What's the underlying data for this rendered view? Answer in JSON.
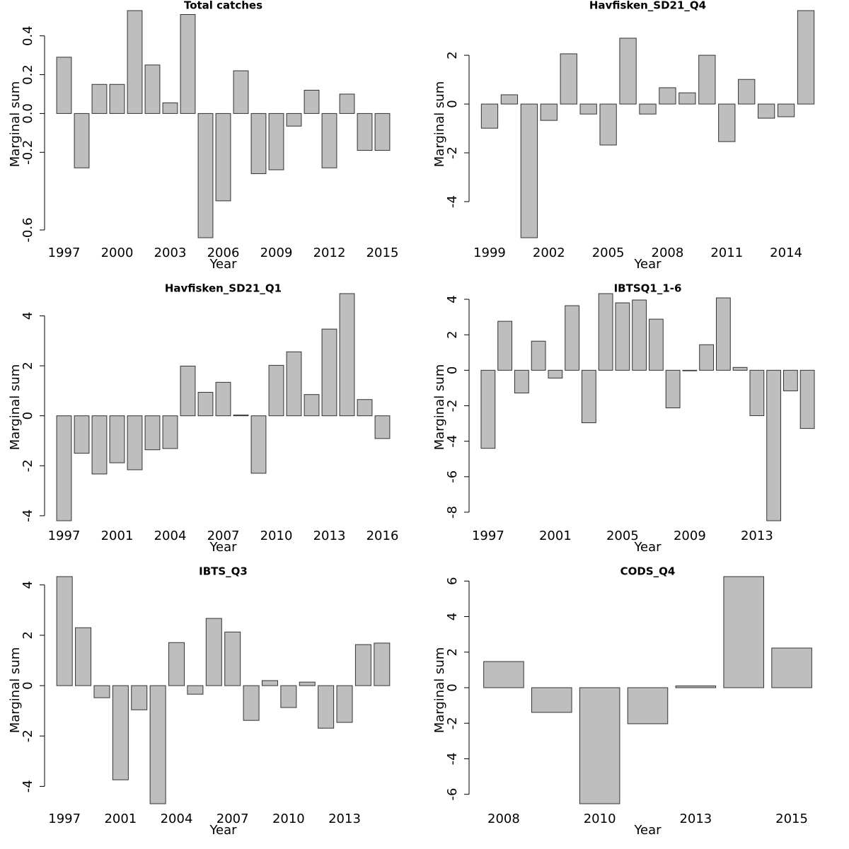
{
  "chart_data": [
    {
      "type": "bar",
      "title": "Total catches",
      "xlabel": "Year",
      "ylabel": "Marginal sum",
      "color": "#bebebe",
      "categories": [
        "1997",
        null,
        null,
        "2000",
        null,
        null,
        "2003",
        null,
        null,
        "2006",
        null,
        null,
        "2009",
        null,
        null,
        "2012",
        null,
        null,
        "2015"
      ],
      "values": [
        0.29,
        -0.28,
        0.15,
        0.15,
        0.53,
        0.25,
        0.055,
        0.51,
        -0.64,
        -0.45,
        0.22,
        -0.31,
        -0.29,
        -0.065,
        0.12,
        -0.28,
        0.1,
        -0.19,
        -0.19
      ],
      "ylim": [
        -0.64,
        0.53
      ],
      "yticks": [
        -0.6,
        -0.2,
        {
          "value": 0,
          "label": "0.0"
        },
        0.2,
        0.4
      ]
    },
    {
      "type": "bar",
      "title": "Havfisken_SD21_Q4",
      "xlabel": "Year",
      "ylabel": "Marginal sum",
      "color": "#bebebe",
      "categories": [
        "1999",
        null,
        null,
        "2002",
        null,
        null,
        "2005",
        null,
        null,
        "2008",
        null,
        null,
        "2011",
        null,
        null,
        "2014",
        null
      ],
      "values": [
        -0.99,
        0.38,
        -5.48,
        -0.67,
        2.06,
        -0.41,
        -1.68,
        2.7,
        -0.41,
        0.67,
        0.46,
        2.0,
        -1.54,
        1.01,
        -0.58,
        -0.52,
        3.83
      ],
      "ylim": [
        -5.48,
        3.83
      ],
      "yticks": [
        -4,
        -2,
        0,
        2
      ]
    },
    {
      "type": "bar",
      "title": "Havfisken_SD21_Q1",
      "xlabel": "Year",
      "ylabel": "Marginal sum",
      "color": "#bebebe",
      "categories": [
        "1997",
        null,
        null,
        "2001",
        null,
        null,
        "2004",
        null,
        null,
        "2007",
        null,
        null,
        "2010",
        null,
        null,
        "2013",
        null,
        null,
        "2016"
      ],
      "values": [
        -4.2,
        -1.5,
        -2.33,
        -1.88,
        -2.16,
        -1.36,
        -1.31,
        1.99,
        0.94,
        1.34,
        0.03,
        -2.3,
        2.02,
        2.56,
        0.85,
        3.47,
        4.89,
        0.65,
        -0.91
      ],
      "ylim": [
        -4.2,
        4.89
      ],
      "yticks": [
        -4,
        -2,
        0,
        2,
        4
      ]
    },
    {
      "type": "bar",
      "title": "IBTSQ1_1-6",
      "xlabel": "Year",
      "ylabel": "Marginal sum",
      "color": "#bebebe",
      "categories": [
        "1997",
        null,
        null,
        null,
        "2001",
        null,
        null,
        null,
        "2005",
        null,
        null,
        null,
        "2009",
        null,
        null,
        null,
        "2013",
        null,
        null,
        null
      ],
      "values": [
        -4.4,
        2.76,
        -1.28,
        1.64,
        -0.44,
        3.64,
        -2.96,
        4.32,
        3.8,
        3.96,
        2.88,
        -2.12,
        -0.03,
        1.44,
        4.08,
        0.16,
        -2.56,
        -8.48,
        -1.16,
        -3.28
      ],
      "ylim": [
        -8.48,
        4.32
      ],
      "yticks": [
        -8,
        -6,
        -4,
        -2,
        0,
        2,
        4
      ]
    },
    {
      "type": "bar",
      "title": "IBTS_Q3",
      "xlabel": "Year",
      "ylabel": "Marginal sum",
      "color": "#bebebe",
      "categories": [
        "1997",
        null,
        null,
        "2001",
        null,
        null,
        "2004",
        null,
        null,
        "2007",
        null,
        null,
        "2010",
        null,
        null,
        "2013",
        null,
        null
      ],
      "values": [
        4.33,
        2.3,
        -0.48,
        -3.74,
        -0.96,
        -4.69,
        1.71,
        -0.34,
        2.67,
        2.13,
        -1.38,
        0.2,
        -0.87,
        0.14,
        -1.69,
        -1.46,
        1.63,
        1.69
      ],
      "ylim": [
        -4.69,
        4.33
      ],
      "yticks": [
        -4,
        -2,
        0,
        2,
        4
      ]
    },
    {
      "type": "bar",
      "title": "CODS_Q4",
      "xlabel": "Year",
      "ylabel": "Marginal sum",
      "color": "#bebebe",
      "categories": [
        "2008",
        null,
        "2010",
        null,
        "2013",
        null,
        "2015"
      ],
      "values": [
        1.47,
        -1.39,
        -6.53,
        -2.03,
        0.1,
        6.25,
        2.23
      ],
      "ylim": [
        -6.53,
        6.25
      ],
      "yticks": [
        -6,
        -4,
        -2,
        0,
        2,
        4,
        6
      ]
    }
  ]
}
